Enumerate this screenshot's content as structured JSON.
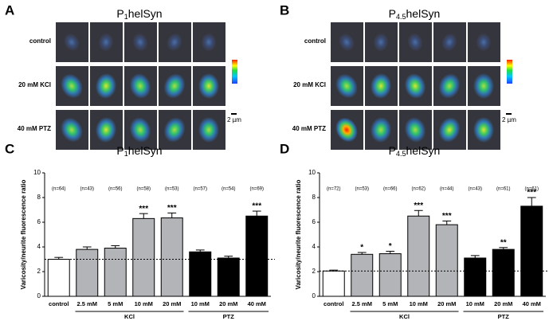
{
  "panels": [
    {
      "label": "A",
      "title": {
        "prefix": "P",
        "subscript": "1",
        "suffix": "helSyn"
      },
      "rows": [
        "control",
        "20 mM KCl",
        "40 mM PTZ"
      ],
      "scale_bar": "2 µm"
    },
    {
      "label": "B",
      "title": {
        "prefix": "P",
        "subscript": "4.5",
        "suffix": "helSyn"
      },
      "rows": [
        "control",
        "20 mM KCl",
        "40 mM PTZ"
      ],
      "scale_bar": "2 µm"
    }
  ],
  "chart_data": [
    {
      "type": "bar",
      "panel_label": "C",
      "title": {
        "prefix": "P",
        "subscript": "1",
        "suffix": "helSyn"
      },
      "y_label": "Varicosity/neurite fluorescence ratio",
      "categories": [
        "control",
        "2.5 mM",
        "5 mM",
        "10 mM",
        "20 mM",
        "10 mM",
        "20 mM",
        "40 mM"
      ],
      "values": [
        3.0,
        3.8,
        3.9,
        6.3,
        6.35,
        3.6,
        3.1,
        6.5
      ],
      "errors": [
        0.15,
        0.2,
        0.2,
        0.4,
        0.4,
        0.15,
        0.15,
        0.4
      ],
      "colors": [
        "#ffffff",
        "#b3b4b8",
        "#b3b4b8",
        "#b3b4b8",
        "#b3b4b8",
        "#000000",
        "#000000",
        "#000000"
      ],
      "n_labels": [
        "(n=64)",
        "(n=43)",
        "(n=56)",
        "(n=58)",
        "(n=53)",
        "(n=57)",
        "(n=54)",
        "(n=69)"
      ],
      "significance": [
        null,
        null,
        null,
        "***",
        "***",
        null,
        null,
        "***"
      ],
      "groups": [
        {
          "label": "KCl",
          "count": 4
        },
        {
          "label": "PTZ",
          "count": 3
        }
      ],
      "control_reference_line": true,
      "ylim": [
        0,
        10
      ],
      "yticks": [
        0,
        2,
        4,
        6,
        8,
        10
      ]
    },
    {
      "type": "bar",
      "panel_label": "D",
      "title": {
        "prefix": "P",
        "subscript": "4.5",
        "suffix": "helSyn"
      },
      "y_label": "Varicosity/neurite fluorescence ratio",
      "categories": [
        "control",
        "2.5 mM",
        "5 mM",
        "10 mM",
        "20 mM",
        "10 mM",
        "20 mM",
        "40 mM"
      ],
      "values": [
        2.05,
        3.4,
        3.45,
        6.5,
        5.8,
        3.1,
        3.8,
        7.3
      ],
      "errors": [
        0.07,
        0.15,
        0.2,
        0.45,
        0.3,
        0.2,
        0.15,
        0.7
      ],
      "colors": [
        "#ffffff",
        "#b3b4b8",
        "#b3b4b8",
        "#b3b4b8",
        "#b3b4b8",
        "#000000",
        "#000000",
        "#000000"
      ],
      "n_labels": [
        "(n=72)",
        "(n=53)",
        "(n=66)",
        "(n=62)",
        "(n=44)",
        "(n=43)",
        "(n=61)",
        "(n=61)"
      ],
      "significance": [
        null,
        "*",
        "*",
        "***",
        "***",
        null,
        "**",
        "***"
      ],
      "groups": [
        {
          "label": "KCl",
          "count": 4
        },
        {
          "label": "PTZ",
          "count": 3
        }
      ],
      "control_reference_line": true,
      "ylim": [
        0,
        10
      ],
      "yticks": [
        0,
        2,
        4,
        6,
        8,
        10
      ]
    }
  ]
}
